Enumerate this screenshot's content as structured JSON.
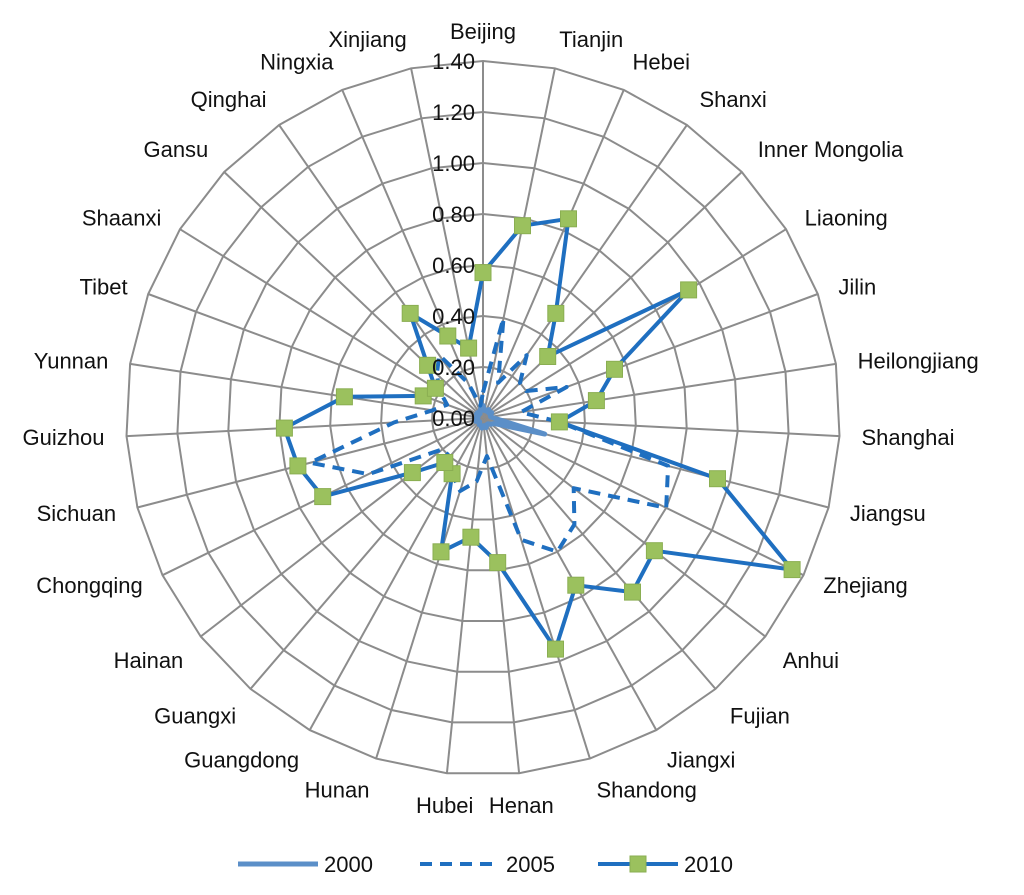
{
  "chart_data": {
    "type": "radar",
    "categories": [
      "Beijing",
      "Tianjin",
      "Hebei",
      "Shanxi",
      "Inner Mongolia",
      "Liaoning",
      "Jilin",
      "Heilongjiang",
      "Shanghai",
      "Jiangsu",
      "Zhejiang",
      "Anhui",
      "Fujian",
      "Jiangxi",
      "Shandong",
      "Henan",
      "Hubei",
      "Hunan",
      "Guangdong",
      "Guangxi",
      "Hainan",
      "Chongqing",
      "Sichuan",
      "Guizhou",
      "Yunnan",
      "Tibet",
      "Shaanxi",
      "Gansu",
      "Qinghai",
      "Ningxia",
      "Xinjiang"
    ],
    "r_ticks": [
      "0.00",
      "0.20",
      "0.40",
      "0.60",
      "0.80",
      "1.00",
      "1.20",
      "1.40"
    ],
    "rlim": [
      0,
      1.4
    ],
    "series": [
      {
        "name": "2000",
        "style": "solid-thin",
        "color": "#5b8fc8",
        "values": [
          0.05,
          0.03,
          0.03,
          0.04,
          0.03,
          0.04,
          0.03,
          0.03,
          0.05,
          0.25,
          0.05,
          0.04,
          0.03,
          0.03,
          0.04,
          0.03,
          0.04,
          0.03,
          0.03,
          0.02,
          0.02,
          0.03,
          0.03,
          0.03,
          0.02,
          0.02,
          0.03,
          0.03,
          0.02,
          0.03,
          0.04
        ]
      },
      {
        "name": "2005",
        "style": "dashed",
        "color": "#1f6fc0",
        "values": [
          0.1,
          0.4,
          0.15,
          0.3,
          0.2,
          0.2,
          0.35,
          0.15,
          0.3,
          0.75,
          0.8,
          0.45,
          0.55,
          0.6,
          0.5,
          0.15,
          0.25,
          0.3,
          0.25,
          0.2,
          0.2,
          0.5,
          0.7,
          0.35,
          0.2,
          0.15,
          0.2,
          0.25,
          0.3,
          0.15,
          0.05
        ]
      },
      {
        "name": "2010",
        "style": "solid-markers",
        "color": "#1f6fc0",
        "marker_color": "#9bc15e",
        "values": [
          0.57,
          0.77,
          0.85,
          0.5,
          0.35,
          0.95,
          0.55,
          0.45,
          0.3,
          0.95,
          1.35,
          0.85,
          0.9,
          0.75,
          0.95,
          0.57,
          0.47,
          0.55,
          0.25,
          0.23,
          0.35,
          0.7,
          0.75,
          0.78,
          0.55,
          0.25,
          0.22,
          0.3,
          0.5,
          0.35,
          0.28
        ]
      }
    ],
    "legend_position": "bottom",
    "grid": true
  }
}
